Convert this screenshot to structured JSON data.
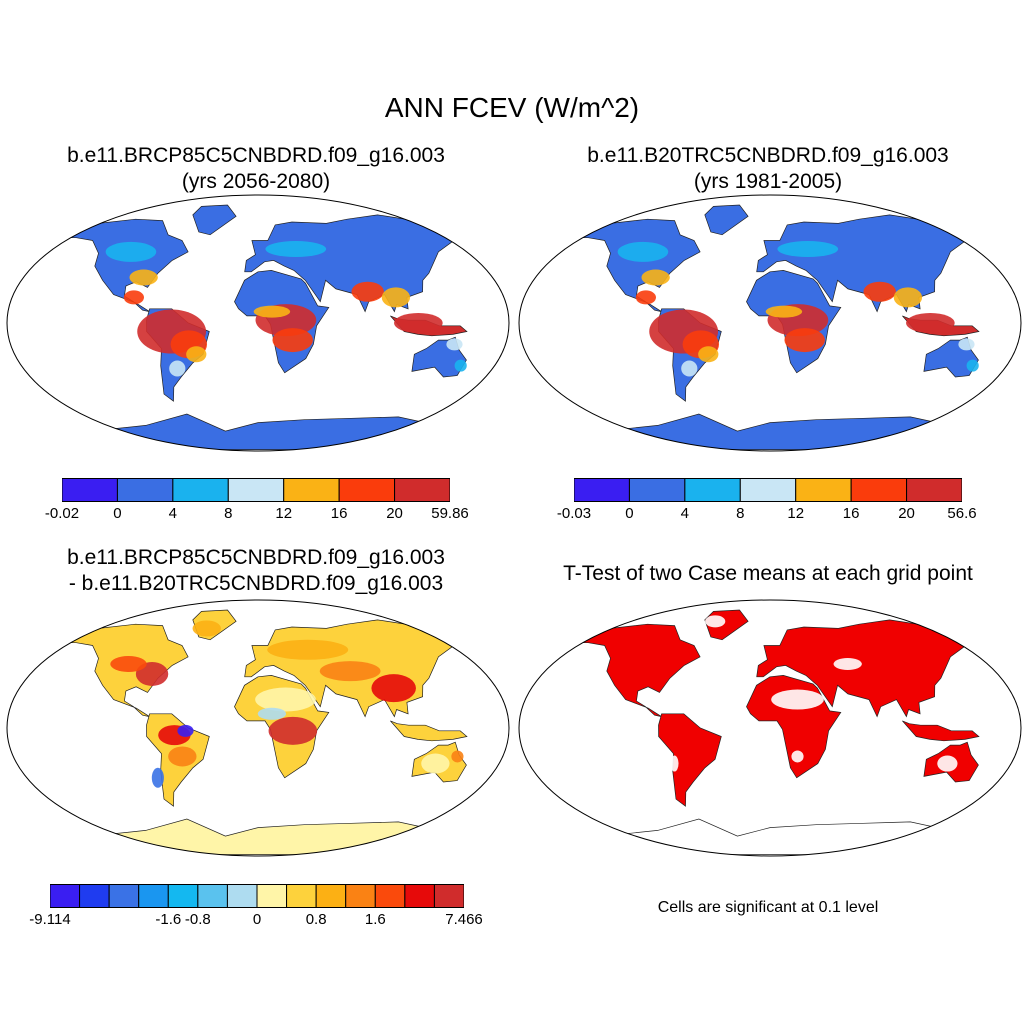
{
  "title": "ANN FCEV (W/m^2)",
  "panels": [
    {
      "title_line1": "b.e11.BRCP85C5CNBDRD.f09_g16.003",
      "title_line2": "(yrs 2056-2080)",
      "colorbar": {
        "colors": [
          "#3a1ef2",
          "#3a6ee3",
          "#1ab2ee",
          "#c9e6f5",
          "#fab215",
          "#fa3c0c",
          "#d02c2c"
        ],
        "labels": [
          "-0.02",
          "0",
          "4",
          "8",
          "12",
          "16",
          "20",
          "59.86"
        ]
      }
    },
    {
      "title_line1": "b.e11.B20TRC5CNBDRD.f09_g16.003",
      "title_line2": "(yrs 1981-2005)",
      "colorbar": {
        "colors": [
          "#3a1ef2",
          "#3a6ee3",
          "#1ab2ee",
          "#c9e6f5",
          "#fab215",
          "#fa3c0c",
          "#d02c2c"
        ],
        "labels": [
          "-0.03",
          "0",
          "4",
          "8",
          "12",
          "16",
          "20",
          "56.6"
        ]
      }
    },
    {
      "title_line1": "b.e11.BRCP85C5CNBDRD.f09_g16.003",
      "title_line2": "- b.e11.B20TRC5CNBDRD.f09_g16.003",
      "colorbar": {
        "colors": [
          "#3a1ef2",
          "#1f3cf0",
          "#3a72e6",
          "#1a96f0",
          "#14b8f0",
          "#5ac2ee",
          "#aedcf0",
          "#fff5a8",
          "#fdd23c",
          "#fcb014",
          "#fa8214",
          "#fa4a0c",
          "#e60a0a",
          "#d02c2c"
        ],
        "labels": [
          "-9.114",
          "-1.6",
          "-0.8",
          "0",
          "0.8",
          "1.6",
          "7.466"
        ]
      }
    },
    {
      "title": "T-Test of two Case means at each grid point",
      "note": "Cells are significant at 0.1 level"
    }
  ]
}
